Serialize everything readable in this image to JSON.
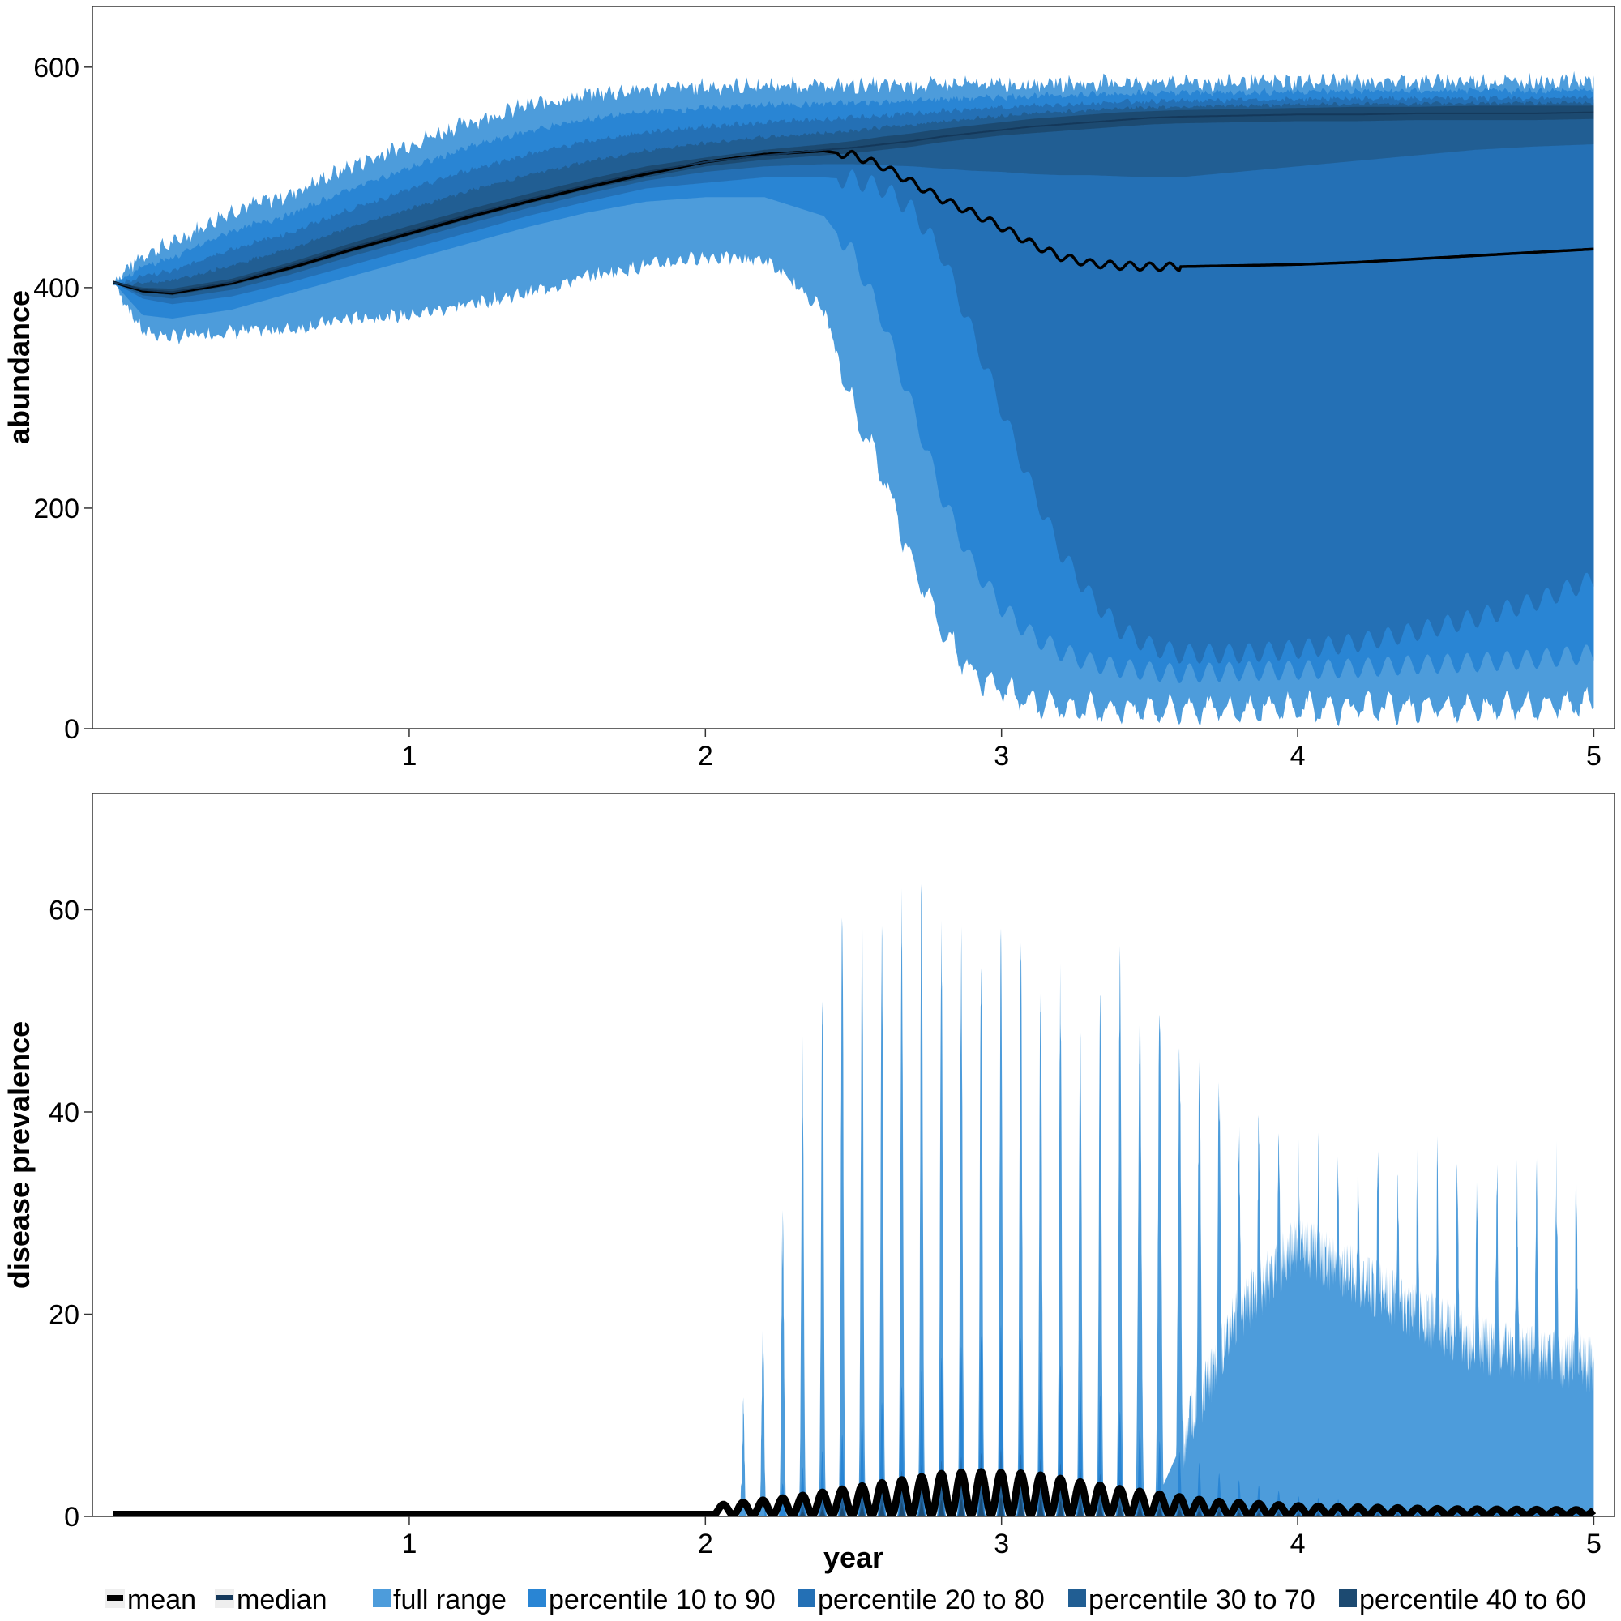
{
  "chart_data": [
    {
      "type": "area",
      "title": "",
      "xlabel": "",
      "ylabel": "abundance",
      "xlim": [
        -0.07,
        5.07
      ],
      "ylim": [
        0,
        655
      ],
      "xticks": [
        1,
        2,
        3,
        4,
        5
      ],
      "yticks": [
        0,
        200,
        400,
        600
      ],
      "x_knots": [
        0,
        0.1,
        0.2,
        0.4,
        0.6,
        0.8,
        1.0,
        1.2,
        1.4,
        1.6,
        1.8,
        2.0,
        2.2,
        2.4,
        2.5,
        2.6,
        2.7,
        2.8,
        2.9,
        3.0,
        3.1,
        3.2,
        3.3,
        3.4,
        3.5,
        3.6,
        3.8,
        4.0,
        4.2,
        4.4,
        4.6,
        4.8,
        5.0
      ],
      "bands": [
        {
          "name": "full range",
          "color": "#4d9cdb",
          "lower": [
            405,
            360,
            355,
            360,
            362,
            372,
            375,
            385,
            395,
            410,
            420,
            428,
            425,
            380,
            290,
            230,
            150,
            90,
            50,
            35,
            25,
            20,
            18,
            18,
            17,
            18,
            18,
            19,
            19,
            19,
            19,
            20,
            25
          ],
          "upper": [
            405,
            430,
            440,
            470,
            485,
            510,
            530,
            550,
            565,
            575,
            580,
            582,
            583,
            583,
            583,
            583,
            583,
            584,
            584,
            585,
            585,
            585,
            585,
            586,
            586,
            586,
            586,
            587,
            587,
            587,
            587,
            587,
            588
          ]
        },
        {
          "name": "percentile 10 to 90",
          "color": "#2985d4",
          "lower": [
            405,
            375,
            372,
            380,
            395,
            410,
            425,
            440,
            455,
            468,
            478,
            482,
            482,
            465,
            430,
            370,
            290,
            210,
            150,
            110,
            85,
            70,
            60,
            55,
            52,
            50,
            52,
            53,
            55,
            58,
            60,
            63,
            68
          ]
        },
        {
          "name": "percentile 20 to 80",
          "color": "#2470b5",
          "lower": [
            405,
            390,
            385,
            392,
            405,
            420,
            435,
            450,
            465,
            478,
            490,
            495,
            500,
            500,
            498,
            490,
            470,
            430,
            360,
            290,
            220,
            160,
            120,
            90,
            75,
            68,
            68,
            72,
            78,
            88,
            100,
            115,
            135
          ]
        },
        {
          "name": "percentile 30 to 70",
          "color": "#215e93",
          "lower": [
            405,
            393,
            390,
            398,
            412,
            428,
            443,
            458,
            472,
            485,
            497,
            505,
            510,
            512,
            512,
            511,
            510,
            508,
            506,
            505,
            503,
            502,
            502,
            501,
            500,
            500,
            505,
            510,
            515,
            520,
            525,
            528,
            530
          ]
        },
        {
          "name": "percentile 40 to 60",
          "color": "#1c4a71",
          "lower": [
            405,
            396,
            393,
            402,
            416,
            432,
            447,
            462,
            476,
            489,
            500,
            510,
            516,
            520,
            522,
            525,
            528,
            532,
            535,
            538,
            540,
            542,
            544,
            546,
            548,
            549,
            550,
            551,
            551,
            552,
            552,
            552,
            553
          ],
          "upper": [
            405,
            400,
            399,
            408,
            423,
            440,
            456,
            471,
            485,
            498,
            510,
            518,
            525,
            530,
            533,
            537,
            540,
            544,
            547,
            550,
            553,
            555,
            557,
            559,
            560,
            561,
            562,
            563,
            564,
            564,
            565,
            565,
            565
          ]
        }
      ],
      "series": [
        {
          "name": "mean",
          "color": "#000000",
          "values": [
            405,
            397,
            395,
            404,
            418,
            434,
            449,
            464,
            478,
            491,
            503,
            514,
            521,
            524,
            520,
            510,
            495,
            480,
            468,
            455,
            440,
            428,
            422,
            420,
            419,
            419,
            420,
            421,
            423,
            426,
            429,
            432,
            435
          ]
        },
        {
          "name": "median",
          "color": "#14385a",
          "values": [
            405,
            398,
            396,
            405,
            420,
            436,
            451,
            466,
            480,
            493,
            505,
            514,
            520,
            525,
            527,
            530,
            533,
            537,
            540,
            543,
            546,
            548,
            550,
            552,
            554,
            555,
            556,
            557,
            557,
            558,
            558,
            558,
            559
          ]
        }
      ]
    },
    {
      "type": "area",
      "title": "",
      "xlabel": "year",
      "ylabel": "disease prevalence",
      "xlim": [
        -0.07,
        5.07
      ],
      "ylim": [
        0,
        71.5
      ],
      "xticks": [
        1,
        2,
        3,
        4,
        5
      ],
      "yticks": [
        0,
        20,
        40,
        60
      ],
      "period": 0.067,
      "full_range_peaks_x": [
        2.13,
        2.2,
        2.27,
        2.33,
        2.4,
        2.47,
        2.53,
        2.6,
        2.67,
        2.73,
        2.8,
        2.87,
        2.93,
        3.0,
        3.07,
        3.13,
        3.2,
        3.27,
        3.33,
        3.4,
        3.47,
        3.53,
        3.6,
        3.67,
        3.73,
        3.8,
        3.87,
        3.93
      ],
      "full_range_peaks_y": [
        9,
        18,
        32,
        44,
        52,
        60,
        58,
        56,
        59,
        63,
        57,
        55,
        53,
        58,
        57,
        54,
        52,
        50,
        51,
        54,
        48,
        50,
        45,
        44,
        42,
        38,
        38,
        37
      ],
      "full_range_floor": {
        "x": [
          3.5,
          3.8,
          4.0,
          4.3,
          4.6,
          5.0
        ],
        "y": [
          0,
          20,
          27,
          22,
          17,
          15
        ]
      },
      "p10_90_peak_envelope": {
        "x": [
          2.25,
          2.5,
          2.75,
          3.0,
          3.25,
          3.5,
          3.75,
          4.0,
          4.5,
          5.0
        ],
        "y": [
          3,
          9,
          15,
          19,
          14,
          8,
          4,
          2,
          0.8,
          0.5
        ]
      },
      "mean_envelope": {
        "x": [
          2.05,
          2.3,
          2.6,
          2.8,
          2.9,
          3.1,
          3.4,
          3.7,
          4.0,
          4.5,
          5.0
        ],
        "y": [
          1.0,
          1.8,
          3.2,
          4.1,
          4.3,
          4.1,
          2.6,
          1.4,
          0.9,
          0.6,
          0.5
        ]
      },
      "legend": [
        "mean",
        "median",
        "full range",
        "percentile 10 to 90",
        "percentile 20 to 80",
        "percentile 30 to 70",
        "percentile 40 to 60"
      ],
      "legend_placement": "bottom",
      "grid": false
    }
  ],
  "legend": {
    "mean": "mean",
    "median": "median",
    "full": "full range",
    "p1090": "percentile 10 to 90",
    "p2080": "percentile 20 to 80",
    "p3070": "percentile 30 to 70",
    "p4060": "percentile 40 to 60"
  },
  "colors": {
    "full": "#4d9cdb",
    "p1090": "#2985d4",
    "p2080": "#2470b5",
    "p3070": "#215e93",
    "p4060": "#1c4a71",
    "mean": "#000000",
    "median": "#14385a"
  }
}
